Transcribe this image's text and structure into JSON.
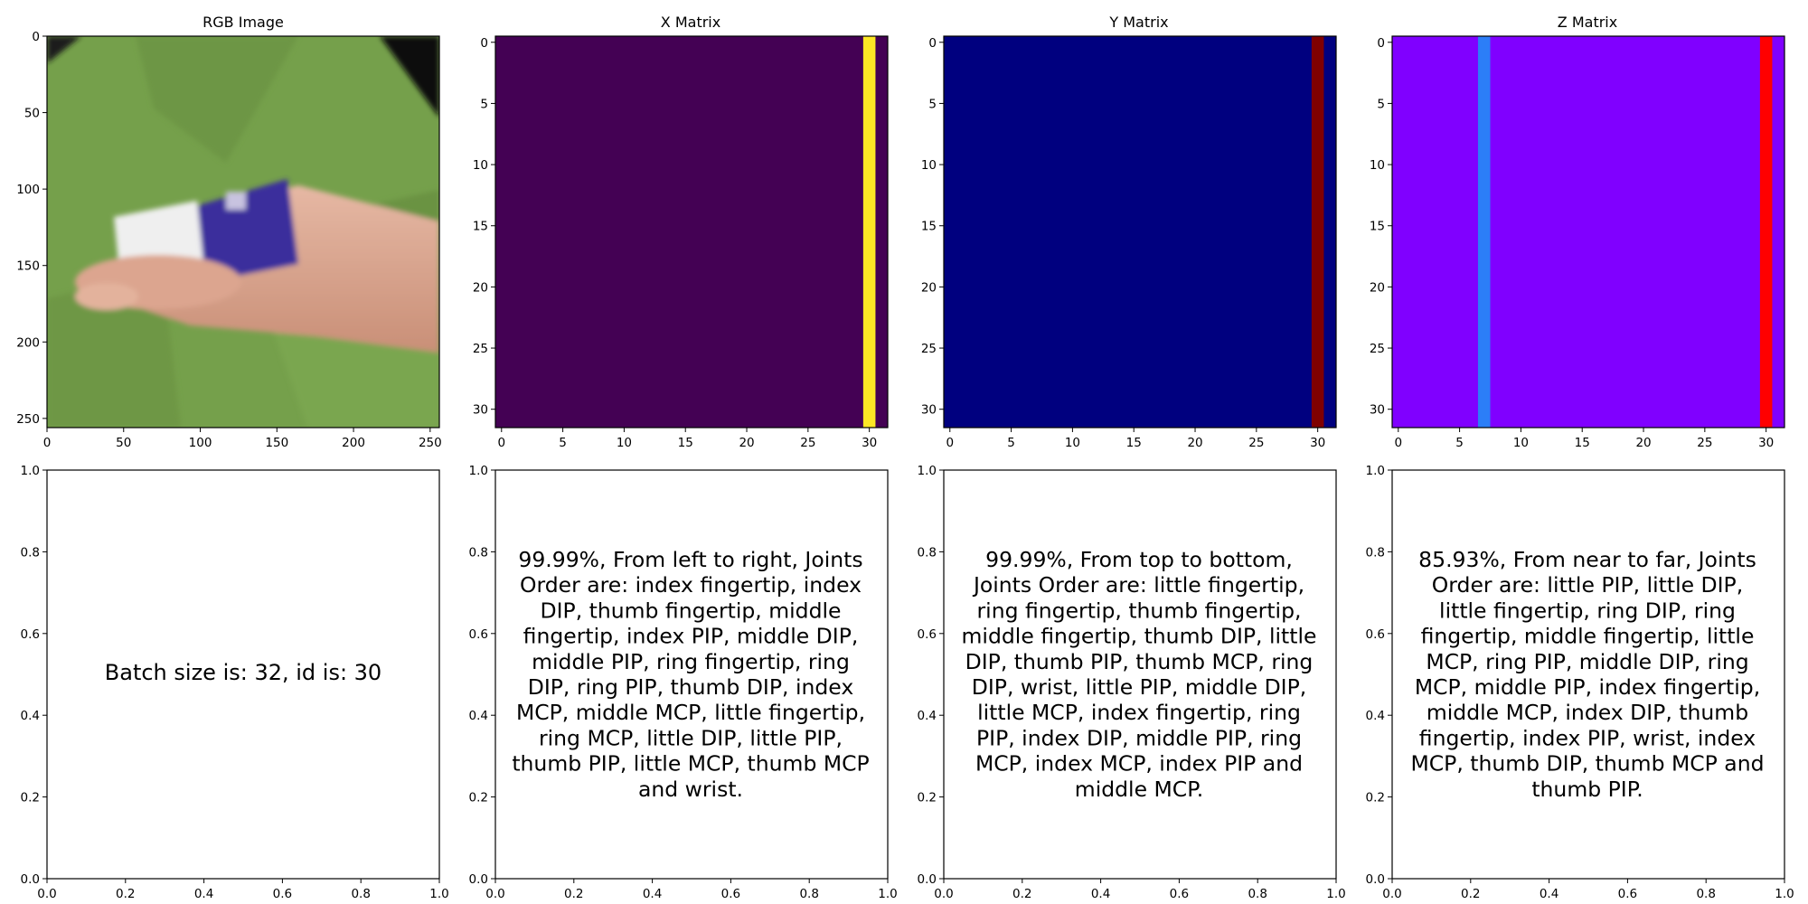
{
  "figure": {
    "panels": [
      {
        "id": "rgb",
        "title": "RGB Image"
      },
      {
        "id": "x",
        "title": "X Matrix"
      },
      {
        "id": "y",
        "title": "Y Matrix"
      },
      {
        "id": "z",
        "title": "Z Matrix"
      }
    ],
    "texts": {
      "batch": "Batch size is: 32, id is: 30",
      "x": "99.99%, From left to right, Joints Order are: index fingertip, index DIP, thumb fingertip, middle fingertip, index PIP, middle DIP, middle PIP, ring fingertip, ring DIP, ring PIP, thumb DIP, index MCP, middle MCP, little fingertip, ring MCP, little DIP, little PIP, thumb PIP, little MCP, thumb MCP and wrist.",
      "y": "99.99%, From top to bottom, Joints Order are: little fingertip, ring fingertip, thumb fingertip, middle fingertip, thumb DIP, little DIP, thumb PIP, thumb MCP, ring DIP, wrist, little PIP, middle DIP, little MCP, index fingertip, ring PIP, index DIP, middle PIP, ring MCP, index MCP, index PIP and middle MCP.",
      "z": "85.93%, From near to far, Joints Order are: little PIP, little DIP, little fingertip, ring DIP, ring fingertip, middle fingertip, little MCP, ring PIP, middle DIP, ring MCP, middle PIP, index fingertip, middle MCP, index DIP, thumb fingertip, index PIP, wrist, index MCP, thumb DIP, thumb MCP and thumb PIP."
    }
  },
  "chart_data": [
    {
      "type": "image",
      "title": "RGB Image",
      "xlim": [
        0,
        256
      ],
      "ylim": [
        256,
        0
      ],
      "xticks": [
        0,
        50,
        100,
        150,
        200,
        250
      ],
      "yticks": [
        0,
        50,
        100,
        150,
        200,
        250
      ],
      "background_color": "#77a04d",
      "subject": "hand holding a blue and white tube"
    },
    {
      "type": "heatmap",
      "title": "X Matrix",
      "shape": [
        32,
        32
      ],
      "xlim": [
        -0.5,
        31.5
      ],
      "ylim": [
        31.5,
        -0.5
      ],
      "xticks": [
        0,
        5,
        10,
        15,
        20,
        25,
        30
      ],
      "yticks": [
        0,
        5,
        10,
        15,
        20,
        25,
        30
      ],
      "colormap": "viridis",
      "base_color": "#440154",
      "columns": [
        {
          "col": 30,
          "color": "#fde725"
        }
      ]
    },
    {
      "type": "heatmap",
      "title": "Y Matrix",
      "shape": [
        32,
        32
      ],
      "xlim": [
        -0.5,
        31.5
      ],
      "ylim": [
        31.5,
        -0.5
      ],
      "xticks": [
        0,
        5,
        10,
        15,
        20,
        25,
        30
      ],
      "yticks": [
        0,
        5,
        10,
        15,
        20,
        25,
        30
      ],
      "colormap": "jet",
      "base_color": "#00007f",
      "columns": [
        {
          "col": 30,
          "color": "#7f0000"
        }
      ]
    },
    {
      "type": "heatmap",
      "title": "Z Matrix",
      "shape": [
        32,
        32
      ],
      "xlim": [
        -0.5,
        31.5
      ],
      "ylim": [
        31.5,
        -0.5
      ],
      "xticks": [
        0,
        5,
        10,
        15,
        20,
        25,
        30
      ],
      "yticks": [
        0,
        5,
        10,
        15,
        20,
        25,
        30
      ],
      "colormap": "rainbow",
      "base_color": "#8000ff",
      "columns": [
        {
          "col": 7,
          "color": "#2c7ef7"
        },
        {
          "col": 30,
          "color": "#ff0000"
        }
      ]
    },
    {
      "type": "text",
      "xlim": [
        0,
        1
      ],
      "ylim": [
        0,
        1
      ],
      "xticks": [
        "0.0",
        "0.2",
        "0.4",
        "0.6",
        "0.8",
        "1.0"
      ],
      "yticks": [
        "0.0",
        "0.2",
        "0.4",
        "0.6",
        "0.8",
        "1.0"
      ]
    }
  ]
}
